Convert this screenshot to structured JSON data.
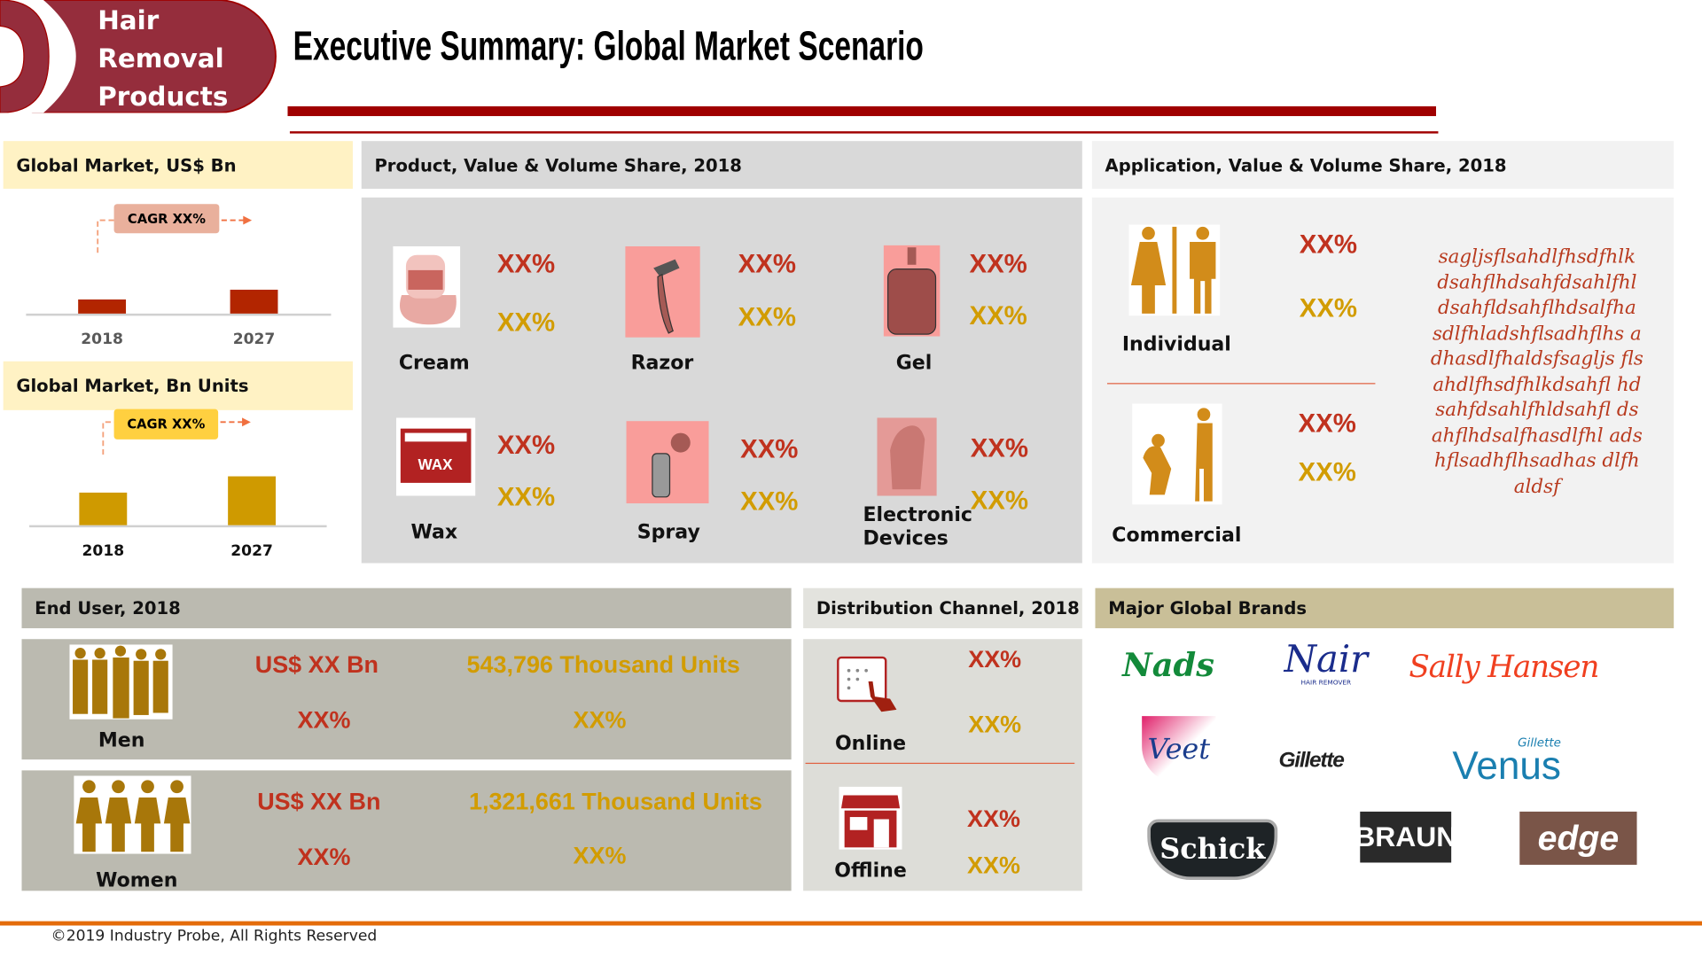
{
  "logo": {
    "line1": "Hair",
    "line2": "Removal",
    "line3": "Products"
  },
  "title": "Executive Summary: Global Market Scenario",
  "global_value": {
    "header": "Global Market, US$ Bn",
    "cagr": "CAGR XX%"
  },
  "global_volume": {
    "header": "Global Market, Bn Units",
    "cagr": "CAGR XX%"
  },
  "chart_data": [
    {
      "type": "bar",
      "title": "Global Market, US$ Bn",
      "categories": [
        "2018",
        "2027"
      ],
      "values": [
        13,
        22
      ],
      "value_units": "relative (unlabeled)",
      "color": "#B22500"
    },
    {
      "type": "bar",
      "title": "Global Market, Bn Units",
      "categories": [
        "2018",
        "2027"
      ],
      "values": [
        30,
        45
      ],
      "value_units": "relative (unlabeled)",
      "color": "#CF9A00"
    }
  ],
  "product": {
    "header": "Product, Value & Volume Share, 2018",
    "items": [
      {
        "label": "Cream",
        "value": "XX%",
        "volume": "XX%",
        "icon": "cream-jar-icon"
      },
      {
        "label": "Razor",
        "value": "XX%",
        "volume": "XX%",
        "icon": "razor-icon"
      },
      {
        "label": "Gel",
        "value": "XX%",
        "volume": "XX%",
        "icon": "gel-pump-icon"
      },
      {
        "label": "Wax",
        "value": "XX%",
        "volume": "XX%",
        "icon": "wax-icon"
      },
      {
        "label": "Spray",
        "value": "XX%",
        "volume": "XX%",
        "icon": "spray-can-icon"
      },
      {
        "label": "Electronic Devices",
        "value": "XX%",
        "volume": "XX%",
        "icon": "trimmer-icon"
      }
    ]
  },
  "application": {
    "header": "Application, Value & Volume Share, 2018",
    "items": [
      {
        "label": "Individual",
        "value": "XX%",
        "volume": "XX%"
      },
      {
        "label": "Commercial",
        "value": "XX%",
        "volume": "XX%"
      }
    ],
    "note": "sagljsflsahdlfhsdfhlk dsahflhdsahfdsahlfhl dsahfldsahflhdsalfha sdlfhladshflsadhflhs adhasdlfhaldsfsagljs flsahdlfhsdfhlkdsahfl hdsahfdsahlfhldsahfl dsahflhdsalfhasdlfhl adshflsadhflhsadhas dlfhaldsf"
  },
  "end_user": {
    "header": "End User, 2018",
    "rows": [
      {
        "label": "Men",
        "value": "US$ XX Bn",
        "volume": "543,796 Thousand Units",
        "value_share": "XX%",
        "volume_share": "XX%"
      },
      {
        "label": "Women",
        "value": "US$ XX Bn",
        "volume": "1,321,661 Thousand Units",
        "value_share": "XX%",
        "volume_share": "XX%"
      }
    ]
  },
  "distribution": {
    "header": "Distribution Channel, 2018",
    "items": [
      {
        "label": "Online",
        "value": "XX%",
        "volume": "XX%"
      },
      {
        "label": "Offline",
        "value": "XX%",
        "volume": "XX%"
      }
    ]
  },
  "brands": {
    "header": "Major Global Brands",
    "items": [
      "Nads",
      "Nair",
      "Sally Hansen",
      "Veet",
      "Gillette",
      "Venus",
      "Schick",
      "BRAUN",
      "edge"
    ],
    "nair_sub": "HAIR REMOVER",
    "venus_sub": "Gillette"
  },
  "footer": "©2019 Industry Probe, All Rights Reserved",
  "colors": {
    "maroon": "#952D3C",
    "red_line": "#A00000",
    "accent_red": "#C0321E",
    "gold": "#D29C00",
    "orange": "#E46C0A"
  }
}
